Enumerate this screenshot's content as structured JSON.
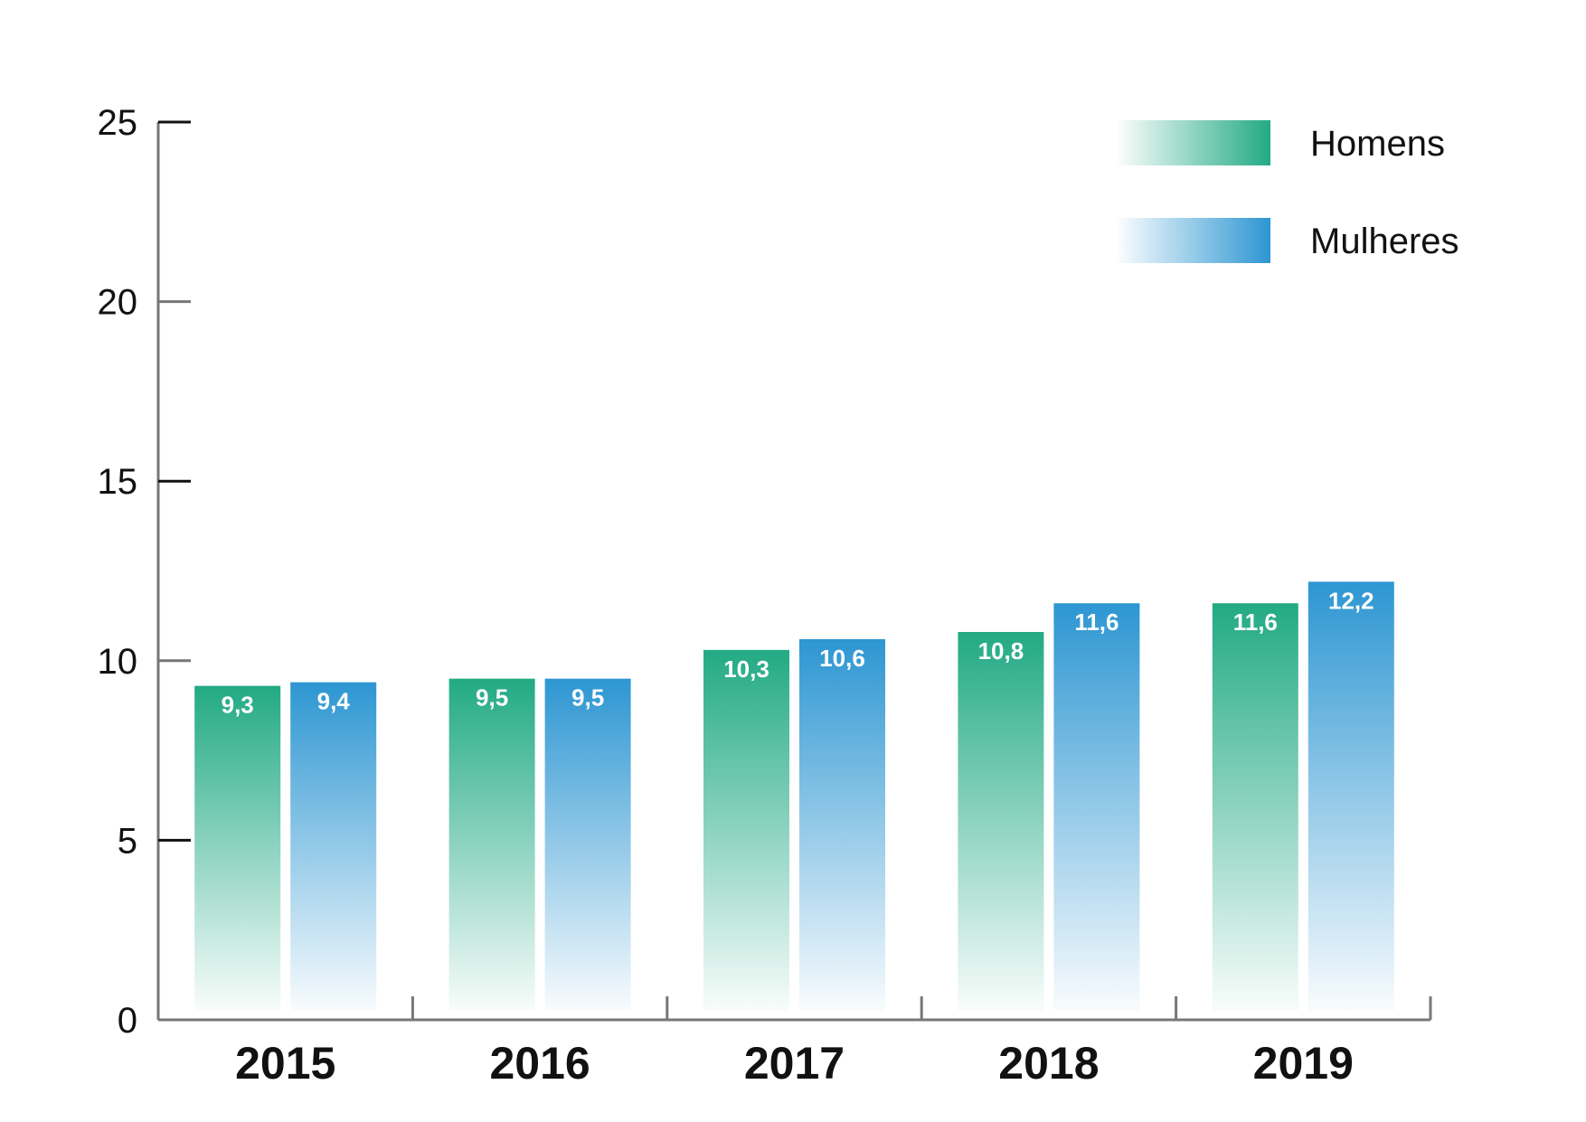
{
  "chart_data": {
    "type": "bar",
    "categories": [
      "2015",
      "2016",
      "2017",
      "2018",
      "2019"
    ],
    "series": [
      {
        "name": "Homens",
        "values": [
          9.3,
          9.5,
          10.3,
          10.8,
          11.6
        ],
        "labels": [
          "9,3",
          "9,5",
          "10,3",
          "10,8",
          "11,6"
        ],
        "color": "#22aa84"
      },
      {
        "name": "Mulheres",
        "values": [
          9.4,
          9.5,
          10.6,
          11.6,
          12.2
        ],
        "labels": [
          "9,4",
          "9,5",
          "10,6",
          "11,6",
          "12,2"
        ],
        "color": "#2d96d2"
      }
    ],
    "ylim": [
      0,
      25
    ],
    "yticks": [
      "0",
      "5",
      "10",
      "15",
      "20",
      "25"
    ],
    "xlabel": "",
    "ylabel": "",
    "title": "",
    "legend_position": "top-right",
    "grid": false
  }
}
